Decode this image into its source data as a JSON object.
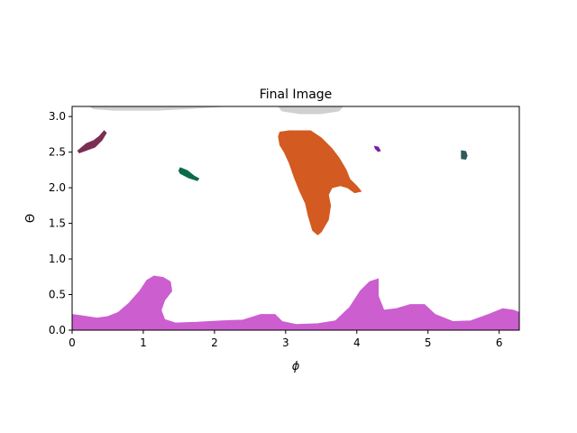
{
  "chart_data": {
    "type": "scatter",
    "title": "Final Image",
    "xlabel": "ϕ",
    "ylabel": "Θ",
    "xlim": [
      0,
      6.283
    ],
    "ylim": [
      0,
      3.1416
    ],
    "x_ticks": [
      0,
      1,
      2,
      3,
      4,
      5,
      6
    ],
    "x_tick_labels": [
      "0",
      "1",
      "2",
      "3",
      "4",
      "5",
      "6"
    ],
    "y_ticks": [
      0.0,
      0.5,
      1.0,
      1.5,
      2.0,
      2.5,
      3.0
    ],
    "y_tick_labels": [
      "0.0",
      "0.5",
      "1.0",
      "1.5",
      "2.0",
      "2.5",
      "3.0"
    ],
    "grid": false,
    "legend": "none",
    "regions": [
      {
        "color": "#d0d0d0",
        "outline": [
          [
            0.25,
            3.14
          ],
          [
            0.3,
            3.11
          ],
          [
            0.6,
            3.09
          ],
          [
            1.2,
            3.09
          ],
          [
            1.6,
            3.11
          ],
          [
            2.1,
            3.14
          ]
        ]
      },
      {
        "color": "#d0d0d0",
        "outline": [
          [
            2.9,
            3.14
          ],
          [
            2.95,
            3.08
          ],
          [
            3.2,
            3.04
          ],
          [
            3.5,
            3.04
          ],
          [
            3.75,
            3.08
          ],
          [
            3.8,
            3.14
          ]
        ]
      },
      {
        "color": "#7a2e52",
        "outline": [
          [
            0.08,
            2.52
          ],
          [
            0.2,
            2.62
          ],
          [
            0.3,
            2.66
          ],
          [
            0.38,
            2.72
          ],
          [
            0.45,
            2.8
          ],
          [
            0.48,
            2.77
          ],
          [
            0.42,
            2.67
          ],
          [
            0.32,
            2.57
          ],
          [
            0.18,
            2.52
          ],
          [
            0.1,
            2.49
          ]
        ]
      },
      {
        "color": "#0b6b49",
        "outline": [
          [
            1.52,
            2.28
          ],
          [
            1.62,
            2.24
          ],
          [
            1.72,
            2.16
          ],
          [
            1.78,
            2.13
          ],
          [
            1.76,
            2.1
          ],
          [
            1.64,
            2.14
          ],
          [
            1.52,
            2.2
          ],
          [
            1.5,
            2.24
          ]
        ]
      },
      {
        "color": "#d35a20",
        "outline": [
          [
            2.92,
            2.78
          ],
          [
            3.05,
            2.8
          ],
          [
            3.35,
            2.8
          ],
          [
            3.5,
            2.7
          ],
          [
            3.65,
            2.55
          ],
          [
            3.75,
            2.42
          ],
          [
            3.85,
            2.25
          ],
          [
            3.9,
            2.12
          ],
          [
            4.0,
            2.02
          ],
          [
            4.06,
            1.95
          ],
          [
            3.97,
            1.93
          ],
          [
            3.87,
            2.0
          ],
          [
            3.77,
            2.03
          ],
          [
            3.65,
            2.0
          ],
          [
            3.6,
            1.9
          ],
          [
            3.63,
            1.75
          ],
          [
            3.6,
            1.55
          ],
          [
            3.5,
            1.38
          ],
          [
            3.45,
            1.34
          ],
          [
            3.38,
            1.4
          ],
          [
            3.32,
            1.6
          ],
          [
            3.28,
            1.78
          ],
          [
            3.2,
            1.95
          ],
          [
            3.12,
            2.15
          ],
          [
            3.05,
            2.35
          ],
          [
            2.98,
            2.5
          ],
          [
            2.92,
            2.6
          ],
          [
            2.9,
            2.72
          ]
        ]
      },
      {
        "color": "#7b1fa2",
        "outline": [
          [
            4.25,
            2.58
          ],
          [
            4.3,
            2.57
          ],
          [
            4.33,
            2.52
          ],
          [
            4.3,
            2.51
          ],
          [
            4.26,
            2.55
          ]
        ]
      },
      {
        "color": "#2f5a58",
        "outline": [
          [
            5.47,
            2.52
          ],
          [
            5.53,
            2.51
          ],
          [
            5.55,
            2.45
          ],
          [
            5.53,
            2.4
          ],
          [
            5.47,
            2.41
          ]
        ]
      },
      {
        "color": "#cc5ecf",
        "outline": [
          [
            0.0,
            0.22
          ],
          [
            0.15,
            0.2
          ],
          [
            0.35,
            0.17
          ],
          [
            0.5,
            0.19
          ],
          [
            0.65,
            0.25
          ],
          [
            0.8,
            0.38
          ],
          [
            0.95,
            0.55
          ],
          [
            1.05,
            0.7
          ],
          [
            1.15,
            0.76
          ],
          [
            1.28,
            0.74
          ],
          [
            1.38,
            0.68
          ],
          [
            1.4,
            0.55
          ],
          [
            1.3,
            0.42
          ],
          [
            1.25,
            0.28
          ],
          [
            1.3,
            0.15
          ],
          [
            1.45,
            0.1
          ],
          [
            1.75,
            0.11
          ],
          [
            2.1,
            0.13
          ],
          [
            2.4,
            0.14
          ],
          [
            2.65,
            0.22
          ],
          [
            2.85,
            0.22
          ],
          [
            2.95,
            0.12
          ],
          [
            3.15,
            0.08
          ],
          [
            3.45,
            0.09
          ],
          [
            3.7,
            0.13
          ],
          [
            3.9,
            0.32
          ],
          [
            4.05,
            0.55
          ],
          [
            4.18,
            0.68
          ],
          [
            4.3,
            0.72
          ],
          [
            4.3,
            0.48
          ],
          [
            4.38,
            0.28
          ],
          [
            4.55,
            0.3
          ],
          [
            4.75,
            0.36
          ],
          [
            4.95,
            0.36
          ],
          [
            5.1,
            0.22
          ],
          [
            5.35,
            0.12
          ],
          [
            5.6,
            0.13
          ],
          [
            5.85,
            0.22
          ],
          [
            6.05,
            0.3
          ],
          [
            6.2,
            0.28
          ],
          [
            6.283,
            0.25
          ],
          [
            6.283,
            0.0
          ],
          [
            0.0,
            0.0
          ]
        ]
      }
    ]
  }
}
